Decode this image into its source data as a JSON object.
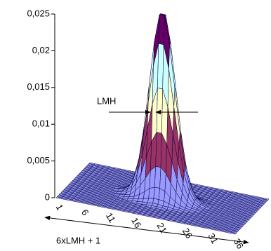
{
  "chart_data": {
    "type": "surface",
    "annotations": [
      "LMH",
      "6xLMH + 1"
    ],
    "categories": [
      1,
      null,
      null,
      null,
      null,
      6,
      null,
      null,
      null,
      null,
      11,
      null,
      null,
      null,
      null,
      16,
      null,
      null,
      null,
      null,
      21,
      null,
      null,
      null,
      null,
      26,
      null,
      null,
      null,
      null,
      31,
      null,
      null,
      null,
      null,
      36
    ],
    "zlim": [
      0,
      0.025
    ],
    "zticks": [
      0,
      {
        "value": 0.005,
        "label": "0,005"
      },
      {
        "value": 0.01,
        "label": "0,01"
      },
      {
        "value": 0.015,
        "label": "0,015"
      },
      {
        "value": 0.02,
        "label": "0,02"
      },
      {
        "value": 0.025,
        "label": "0,025"
      }
    ],
    "band_colors": [
      "#9999ff",
      "#993366",
      "#ffffcc",
      "#ccffff",
      "#660066"
    ],
    "line_color": "#000033",
    "z": [
      [
        0,
        0,
        0,
        0,
        0,
        0,
        0,
        0,
        0,
        0,
        0,
        0,
        0,
        0,
        0,
        0,
        0,
        0,
        0,
        0,
        0,
        0,
        0,
        0,
        0,
        0,
        0,
        0,
        0,
        0,
        0,
        0,
        0,
        0,
        0,
        0
      ],
      [
        0,
        0,
        0,
        0,
        0,
        0,
        0,
        0,
        0,
        0,
        0,
        0,
        0,
        0,
        0,
        0,
        0,
        0,
        0,
        0,
        0,
        0,
        0,
        0,
        0,
        0,
        0,
        0,
        0,
        0,
        0,
        0,
        0,
        0,
        0,
        0
      ],
      [
        0,
        0,
        0,
        0,
        0,
        0,
        0,
        0,
        0,
        0,
        0,
        0,
        0,
        0,
        0,
        0,
        0,
        0,
        0,
        0,
        0,
        0,
        0,
        0,
        0,
        0,
        0,
        0,
        0,
        0,
        0,
        0,
        0,
        0,
        0,
        0
      ],
      [
        0,
        0,
        0,
        0,
        0,
        0,
        0,
        0,
        0,
        0,
        0,
        0,
        0,
        0,
        0,
        0,
        0,
        0,
        0,
        0,
        0,
        0,
        0,
        0,
        0,
        0,
        0,
        0,
        0,
        0,
        0,
        0,
        0,
        0,
        0,
        0
      ],
      [
        0,
        0,
        0,
        0,
        0,
        0,
        0,
        0,
        0,
        0,
        0,
        0,
        0,
        0,
        0,
        0,
        0,
        0,
        0,
        0,
        0,
        0,
        0,
        0,
        0,
        0,
        0,
        0,
        0,
        0,
        0,
        0,
        0,
        0,
        0,
        0
      ],
      [
        0,
        0,
        0,
        0,
        0,
        0,
        0,
        0,
        0,
        0,
        0,
        0,
        0,
        0,
        0,
        0,
        0,
        0,
        0,
        0,
        0,
        0,
        0,
        0,
        0,
        0,
        0,
        0,
        0,
        0,
        0,
        0,
        0,
        0,
        0,
        0
      ],
      [
        0,
        0,
        0,
        0,
        0,
        0,
        0,
        0,
        0,
        0,
        0,
        0,
        0,
        0,
        0,
        0,
        0,
        0,
        0,
        0,
        0,
        0,
        0,
        0,
        0,
        0,
        0,
        0,
        0,
        0,
        0,
        0,
        0,
        0,
        0,
        0
      ],
      [
        0,
        0,
        0,
        0,
        0,
        0,
        0,
        0,
        0,
        0,
        0,
        0,
        0,
        0,
        0,
        0,
        0,
        0,
        0,
        0,
        0,
        0,
        0,
        0,
        0,
        0,
        0,
        0,
        0,
        0,
        0,
        0,
        0,
        0,
        0,
        0
      ],
      [
        0,
        0,
        0,
        0,
        0,
        0,
        0,
        0,
        0,
        0,
        0,
        0,
        0,
        0,
        0,
        0,
        0,
        0,
        0,
        0,
        0,
        0,
        0,
        0,
        0,
        0,
        0,
        0,
        0,
        0,
        0,
        0,
        0,
        0,
        0,
        0
      ],
      [
        0,
        0,
        0,
        0,
        0,
        0,
        0,
        0,
        0,
        0,
        0,
        0,
        0,
        0,
        0,
        0,
        0,
        0.0001,
        0.0001,
        0.0001,
        0.0001,
        0,
        0,
        0,
        0,
        0,
        0,
        0,
        0,
        0,
        0,
        0,
        0,
        0,
        0,
        0
      ],
      [
        0,
        0,
        0,
        0,
        0,
        0,
        0,
        0,
        0,
        0,
        0,
        0,
        0,
        0.0001,
        0.0001,
        0.0002,
        0.0002,
        0.0003,
        0.0003,
        0.0002,
        0.0002,
        0.0001,
        0.0001,
        0,
        0,
        0,
        0,
        0,
        0,
        0,
        0,
        0,
        0,
        0,
        0,
        0
      ],
      [
        0,
        0,
        0,
        0,
        0,
        0,
        0,
        0,
        0,
        0,
        0,
        0,
        0.0001,
        0.0002,
        0.0003,
        0.0005,
        0.0007,
        0.0008,
        0.0008,
        0.0007,
        0.0005,
        0.0003,
        0.0002,
        0.0001,
        0,
        0,
        0,
        0,
        0,
        0,
        0,
        0,
        0,
        0,
        0,
        0
      ],
      [
        0,
        0,
        0,
        0,
        0,
        0,
        0,
        0,
        0,
        0,
        0,
        0.0001,
        0.0002,
        0.0004,
        0.0008,
        0.0013,
        0.0019,
        0.0022,
        0.0022,
        0.0019,
        0.0013,
        0.0008,
        0.0004,
        0.0002,
        0.0001,
        0,
        0,
        0,
        0,
        0,
        0,
        0,
        0,
        0,
        0,
        0
      ],
      [
        0,
        0,
        0,
        0,
        0,
        0,
        0,
        0,
        0,
        0,
        0.0001,
        0.0002,
        0.0004,
        0.001,
        0.0019,
        0.003,
        0.0042,
        0.0049,
        0.0049,
        0.0042,
        0.003,
        0.0019,
        0.001,
        0.0004,
        0.0002,
        0.0001,
        0,
        0,
        0,
        0,
        0,
        0,
        0,
        0,
        0,
        0
      ],
      [
        0,
        0,
        0,
        0,
        0,
        0,
        0,
        0,
        0,
        0,
        0.0001,
        0.0003,
        0.0008,
        0.0019,
        0.0035,
        0.0058,
        0.008,
        0.0094,
        0.0094,
        0.008,
        0.0058,
        0.0035,
        0.0019,
        0.0008,
        0.0003,
        0.0001,
        0,
        0,
        0,
        0,
        0,
        0,
        0,
        0,
        0,
        0
      ],
      [
        0,
        0,
        0,
        0,
        0,
        0,
        0,
        0,
        0,
        0,
        0.0002,
        0.0005,
        0.0013,
        0.003,
        0.0058,
        0.0094,
        0.013,
        0.0153,
        0.0153,
        0.013,
        0.0094,
        0.0058,
        0.003,
        0.0013,
        0.0005,
        0.0002,
        0,
        0,
        0,
        0,
        0,
        0,
        0,
        0,
        0,
        0
      ],
      [
        0,
        0,
        0,
        0,
        0,
        0,
        0,
        0,
        0,
        0.0001,
        0.0002,
        0.0007,
        0.0019,
        0.0042,
        0.008,
        0.013,
        0.018,
        0.0212,
        0.0212,
        0.018,
        0.013,
        0.008,
        0.0042,
        0.0019,
        0.0007,
        0.0002,
        0.0001,
        0,
        0,
        0,
        0,
        0,
        0,
        0,
        0,
        0
      ],
      [
        0,
        0,
        0,
        0,
        0,
        0,
        0,
        0,
        0,
        0.0001,
        0.0003,
        0.0008,
        0.0022,
        0.0049,
        0.0094,
        0.0153,
        0.0212,
        0.025,
        0.025,
        0.0212,
        0.0153,
        0.0094,
        0.0049,
        0.0022,
        0.0008,
        0.0003,
        0.0001,
        0,
        0,
        0,
        0,
        0,
        0,
        0,
        0,
        0
      ],
      [
        0,
        0,
        0,
        0,
        0,
        0,
        0,
        0,
        0,
        0.0001,
        0.0003,
        0.0008,
        0.0022,
        0.0049,
        0.0094,
        0.0153,
        0.0212,
        0.025,
        0.025,
        0.0212,
        0.0153,
        0.0094,
        0.0049,
        0.0022,
        0.0008,
        0.0003,
        0.0001,
        0,
        0,
        0,
        0,
        0,
        0,
        0,
        0,
        0
      ],
      [
        0,
        0,
        0,
        0,
        0,
        0,
        0,
        0,
        0,
        0.0001,
        0.0002,
        0.0007,
        0.0019,
        0.0042,
        0.008,
        0.013,
        0.018,
        0.0212,
        0.0212,
        0.018,
        0.013,
        0.008,
        0.0042,
        0.0019,
        0.0007,
        0.0002,
        0.0001,
        0,
        0,
        0,
        0,
        0,
        0,
        0,
        0,
        0
      ],
      [
        0,
        0,
        0,
        0,
        0,
        0,
        0,
        0,
        0,
        0,
        0.0002,
        0.0005,
        0.0013,
        0.003,
        0.0058,
        0.0094,
        0.013,
        0.0153,
        0.0153,
        0.013,
        0.0094,
        0.0058,
        0.003,
        0.0013,
        0.0005,
        0.0002,
        0,
        0,
        0,
        0,
        0,
        0,
        0,
        0,
        0,
        0
      ],
      [
        0,
        0,
        0,
        0,
        0,
        0,
        0,
        0,
        0,
        0,
        0.0001,
        0.0003,
        0.0008,
        0.0019,
        0.0035,
        0.0058,
        0.008,
        0.0094,
        0.0094,
        0.008,
        0.0058,
        0.0035,
        0.0019,
        0.0008,
        0.0003,
        0.0001,
        0,
        0,
        0,
        0,
        0,
        0,
        0,
        0,
        0,
        0
      ],
      [
        0,
        0,
        0,
        0,
        0,
        0,
        0,
        0,
        0,
        0,
        0.0001,
        0.0002,
        0.0004,
        0.001,
        0.0019,
        0.003,
        0.0042,
        0.0049,
        0.0049,
        0.0042,
        0.003,
        0.0019,
        0.001,
        0.0004,
        0.0002,
        0.0001,
        0,
        0,
        0,
        0,
        0,
        0,
        0,
        0,
        0,
        0
      ],
      [
        0,
        0,
        0,
        0,
        0,
        0,
        0,
        0,
        0,
        0,
        0,
        0.0001,
        0.0002,
        0.0004,
        0.0008,
        0.0013,
        0.0019,
        0.0022,
        0.0022,
        0.0019,
        0.0013,
        0.0008,
        0.0004,
        0.0002,
        0.0001,
        0,
        0,
        0,
        0,
        0,
        0,
        0,
        0,
        0,
        0,
        0
      ],
      [
        0,
        0,
        0,
        0,
        0,
        0,
        0,
        0,
        0,
        0,
        0,
        0,
        0.0001,
        0.0002,
        0.0003,
        0.0005,
        0.0007,
        0.0008,
        0.0008,
        0.0007,
        0.0005,
        0.0003,
        0.0002,
        0.0001,
        0,
        0,
        0,
        0,
        0,
        0,
        0,
        0,
        0,
        0,
        0,
        0
      ],
      [
        0,
        0,
        0,
        0,
        0,
        0,
        0,
        0,
        0,
        0,
        0,
        0,
        0,
        0.0001,
        0.0001,
        0.0002,
        0.0002,
        0.0003,
        0.0003,
        0.0002,
        0.0002,
        0.0001,
        0.0001,
        0,
        0,
        0,
        0,
        0,
        0,
        0,
        0,
        0,
        0,
        0,
        0,
        0
      ],
      [
        0,
        0,
        0,
        0,
        0,
        0,
        0,
        0,
        0,
        0,
        0,
        0,
        0,
        0,
        0,
        0,
        0,
        0.0001,
        0.0001,
        0.0001,
        0.0001,
        0,
        0,
        0,
        0,
        0,
        0,
        0,
        0,
        0,
        0,
        0,
        0,
        0,
        0,
        0
      ],
      [
        0,
        0,
        0,
        0,
        0,
        0,
        0,
        0,
        0,
        0,
        0,
        0,
        0,
        0,
        0,
        0,
        0,
        0,
        0,
        0,
        0,
        0,
        0,
        0,
        0,
        0,
        0,
        0,
        0,
        0,
        0,
        0,
        0,
        0,
        0,
        0
      ],
      [
        0,
        0,
        0,
        0,
        0,
        0,
        0,
        0,
        0,
        0,
        0,
        0,
        0,
        0,
        0,
        0,
        0,
        0,
        0,
        0,
        0,
        0,
        0,
        0,
        0,
        0,
        0,
        0,
        0,
        0,
        0,
        0,
        0,
        0,
        0,
        0
      ],
      [
        0,
        0,
        0,
        0,
        0,
        0,
        0,
        0,
        0,
        0,
        0,
        0,
        0,
        0,
        0,
        0,
        0,
        0,
        0,
        0,
        0,
        0,
        0,
        0,
        0,
        0,
        0,
        0,
        0,
        0,
        0,
        0,
        0,
        0,
        0,
        0
      ],
      [
        0,
        0,
        0,
        0,
        0,
        0,
        0,
        0,
        0,
        0,
        0,
        0,
        0,
        0,
        0,
        0,
        0,
        0,
        0,
        0,
        0,
        0,
        0,
        0,
        0,
        0,
        0,
        0,
        0,
        0,
        0,
        0,
        0,
        0,
        0,
        0
      ],
      [
        0,
        0,
        0,
        0,
        0,
        0,
        0,
        0,
        0,
        0,
        0,
        0,
        0,
        0,
        0,
        0,
        0,
        0,
        0,
        0,
        0,
        0,
        0,
        0,
        0,
        0,
        0,
        0,
        0,
        0,
        0,
        0,
        0,
        0,
        0,
        0
      ],
      [
        0,
        0,
        0,
        0,
        0,
        0,
        0,
        0,
        0,
        0,
        0,
        0,
        0,
        0,
        0,
        0,
        0,
        0,
        0,
        0,
        0,
        0,
        0,
        0,
        0,
        0,
        0,
        0,
        0,
        0,
        0,
        0,
        0,
        0,
        0,
        0
      ],
      [
        0,
        0,
        0,
        0,
        0,
        0,
        0,
        0,
        0,
        0,
        0,
        0,
        0,
        0,
        0,
        0,
        0,
        0,
        0,
        0,
        0,
        0,
        0,
        0,
        0,
        0,
        0,
        0,
        0,
        0,
        0,
        0,
        0,
        0,
        0,
        0
      ],
      [
        0,
        0,
        0,
        0,
        0,
        0,
        0,
        0,
        0,
        0,
        0,
        0,
        0,
        0,
        0,
        0,
        0,
        0,
        0,
        0,
        0,
        0,
        0,
        0,
        0,
        0,
        0,
        0,
        0,
        0,
        0,
        0,
        0,
        0,
        0,
        0
      ],
      [
        0,
        0,
        0,
        0,
        0,
        0,
        0,
        0,
        0,
        0,
        0,
        0,
        0,
        0,
        0,
        0,
        0,
        0,
        0,
        0,
        0,
        0,
        0,
        0,
        0,
        0,
        0,
        0,
        0,
        0,
        0,
        0,
        0,
        0,
        0,
        0
      ]
    ]
  }
}
